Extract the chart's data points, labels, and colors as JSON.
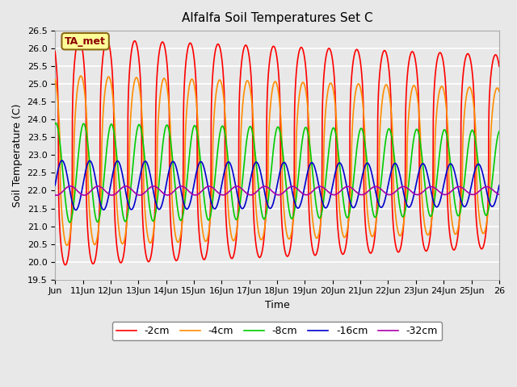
{
  "title": "Alfalfa Soil Temperatures Set C",
  "xlabel": "Time",
  "ylabel": "Soil Temperature (C)",
  "ylim": [
    19.5,
    26.5
  ],
  "xlim_days": [
    0,
    16
  ],
  "x_tick_labels": [
    "Jun",
    "11Jun",
    "12Jun",
    "13Jun",
    "14Jun",
    "15Jun",
    "16Jun",
    "17Jun",
    "18Jun",
    "19Jun",
    "20Jun",
    "21Jun",
    "22Jun",
    "23Jun",
    "24Jun",
    "25Jun",
    "26"
  ],
  "x_tick_positions": [
    0,
    1,
    2,
    3,
    4,
    5,
    6,
    7,
    8,
    9,
    10,
    11,
    12,
    13,
    14,
    15,
    16
  ],
  "legend_label": "TA_met",
  "series": [
    {
      "label": "-2cm",
      "color": "#FF0000",
      "mean": 23.1,
      "amplitude": 3.2,
      "phase_shift": 0.62,
      "sharpness": 3.0
    },
    {
      "label": "-4cm",
      "color": "#FF8C00",
      "mean": 22.85,
      "amplitude": 2.4,
      "phase_shift": 0.68,
      "sharpness": 2.0
    },
    {
      "label": "-8cm",
      "color": "#00CC00",
      "mean": 22.5,
      "amplitude": 1.4,
      "phase_shift": 0.78,
      "sharpness": 1.0
    },
    {
      "label": "-16cm",
      "color": "#0000CC",
      "mean": 22.15,
      "amplitude": 0.7,
      "phase_shift": 0.0,
      "sharpness": 1.0
    },
    {
      "label": "-32cm",
      "color": "#AA00AA",
      "mean": 22.0,
      "amplitude": 0.13,
      "phase_shift": 0.3,
      "sharpness": 1.0
    }
  ],
  "bg_color": "#E8E8E8",
  "plot_bg_color": "#E8E8E8",
  "grid_color": "#FFFFFF",
  "yticks": [
    19.5,
    20.0,
    20.5,
    21.0,
    21.5,
    22.0,
    22.5,
    23.0,
    23.5,
    24.0,
    24.5,
    25.0,
    25.5,
    26.0,
    26.5
  ],
  "legend_box_color": "#FFFF99",
  "legend_box_edge": "#8B6914",
  "ta_met_text_color": "#8B0000",
  "figsize": [
    6.4,
    4.8
  ],
  "dpi": 100
}
